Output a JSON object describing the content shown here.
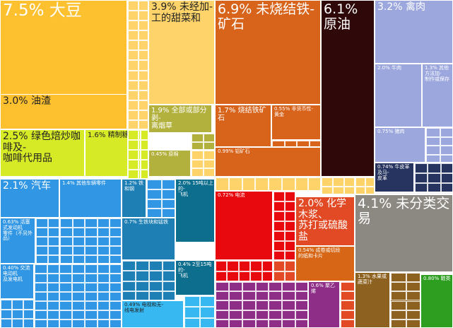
{
  "chart_data": {
    "type": "treemap",
    "unit": "%",
    "items": [
      {
        "label": "大豆",
        "share": "7.5%",
        "value": 7.5
      },
      {
        "label": "未经加-\n工的甜菜和",
        "share": "3.9%",
        "value": 3.9
      },
      {
        "label": "未烧结铁-\n矿石",
        "share": "6.9%",
        "value": 6.9
      },
      {
        "label": "原油",
        "share": "6.1%",
        "value": 6.1
      },
      {
        "label": "禽肉",
        "share": "3.2%",
        "value": 3.2
      },
      {
        "label": "油渣",
        "share": "3.0%",
        "value": 3.0
      },
      {
        "label": "全部或部分剥-\n离烟草",
        "share": "1.9%",
        "value": 1.9
      },
      {
        "label": "烧结铁矿石",
        "share": "1.7%",
        "value": 1.7
      },
      {
        "label": "非货币性-\n黄金",
        "share": "0.55%",
        "value": 0.55
      },
      {
        "label": "牛肉",
        "share": "2.0%",
        "value": 2.0
      },
      {
        "label": "其他方法加-\n制作或保存",
        "share": "1.3%",
        "value": 1.3
      },
      {
        "label": "猪肉",
        "share": "0.75%",
        "value": 0.75
      },
      {
        "label": "绿色焙炒咖啡及-\n咖啡代用品",
        "share": "2.5%",
        "value": 2.5
      },
      {
        "label": "精制糖",
        "share": "1.6%",
        "value": 1.6
      },
      {
        "label": "原棉",
        "share": "0.45%",
        "value": 0.45
      },
      {
        "label": "铝矿石",
        "share": "0.99%",
        "value": 0.99
      },
      {
        "label": "牛皮革及马-\n皮革",
        "share": "0.74%",
        "value": 0.74
      },
      {
        "label": "汽车",
        "share": "2.1%",
        "value": 2.1
      },
      {
        "label": "其他车辆零件",
        "share": "1.4%",
        "value": 1.4
      },
      {
        "label": "铁和钢",
        "share": "1.2%",
        "value": 1.2
      },
      {
        "label": "15吨以上的-\n飞机",
        "share": "2.0%",
        "value": 2.0
      },
      {
        "label": "活塞式发动机\n零件（不另外\n品）",
        "share": "0.63%",
        "value": 0.63
      },
      {
        "label": "生铁块和锰铁",
        "share": "0.7%",
        "value": 0.7
      },
      {
        "label": "2至15吨的-\n飞机",
        "share": "0.4%",
        "value": 0.4
      },
      {
        "label": "交流电动机\n及发电机",
        "share": "0.40%",
        "value": 0.4
      },
      {
        "label": "电视和无-\n线电发射",
        "share": "0.49%",
        "value": 0.49
      },
      {
        "label": "电流",
        "share": "0.72%",
        "value": 0.72
      },
      {
        "label": "化学木浆、\n苏打或硫酸盐",
        "share": "2.0%",
        "value": 2.0
      },
      {
        "label": "成卷或切段\n的纸和卡片",
        "share": "0.54%",
        "value": 0.54
      },
      {
        "label": "聚乙烯",
        "share": "0.6%",
        "value": 0.6
      },
      {
        "label": "未分类交易",
        "share": "4.1%",
        "value": 4.1
      },
      {
        "label": "水果或蔬菜汁",
        "share": "1.3%",
        "value": 1.3
      },
      {
        "label": "鞋类",
        "share": "0.80%",
        "value": 0.8
      }
    ],
    "colors": {
      "food_agri": "#FDC02F",
      "food_light": "#FDD36A",
      "minerals": "#D8641C",
      "crude": "#2F0909",
      "animal": "#9BA7DD",
      "animal_dark": "#27345F",
      "veg_green": "#D7EA26",
      "veg_olive": "#B3B13E",
      "machinery": "#3196E4",
      "metals": "#1E7FB4",
      "transport": "#0E6E8D",
      "electronics": "#37B8F1",
      "electricity": "#E7090E",
      "chemicals": "#E14A25",
      "paper": "#D76716",
      "plastics": "#8E2E87",
      "other": "#8C8882",
      "footwear": "#2E9E21",
      "misc_brown": "#8D611F"
    }
  }
}
